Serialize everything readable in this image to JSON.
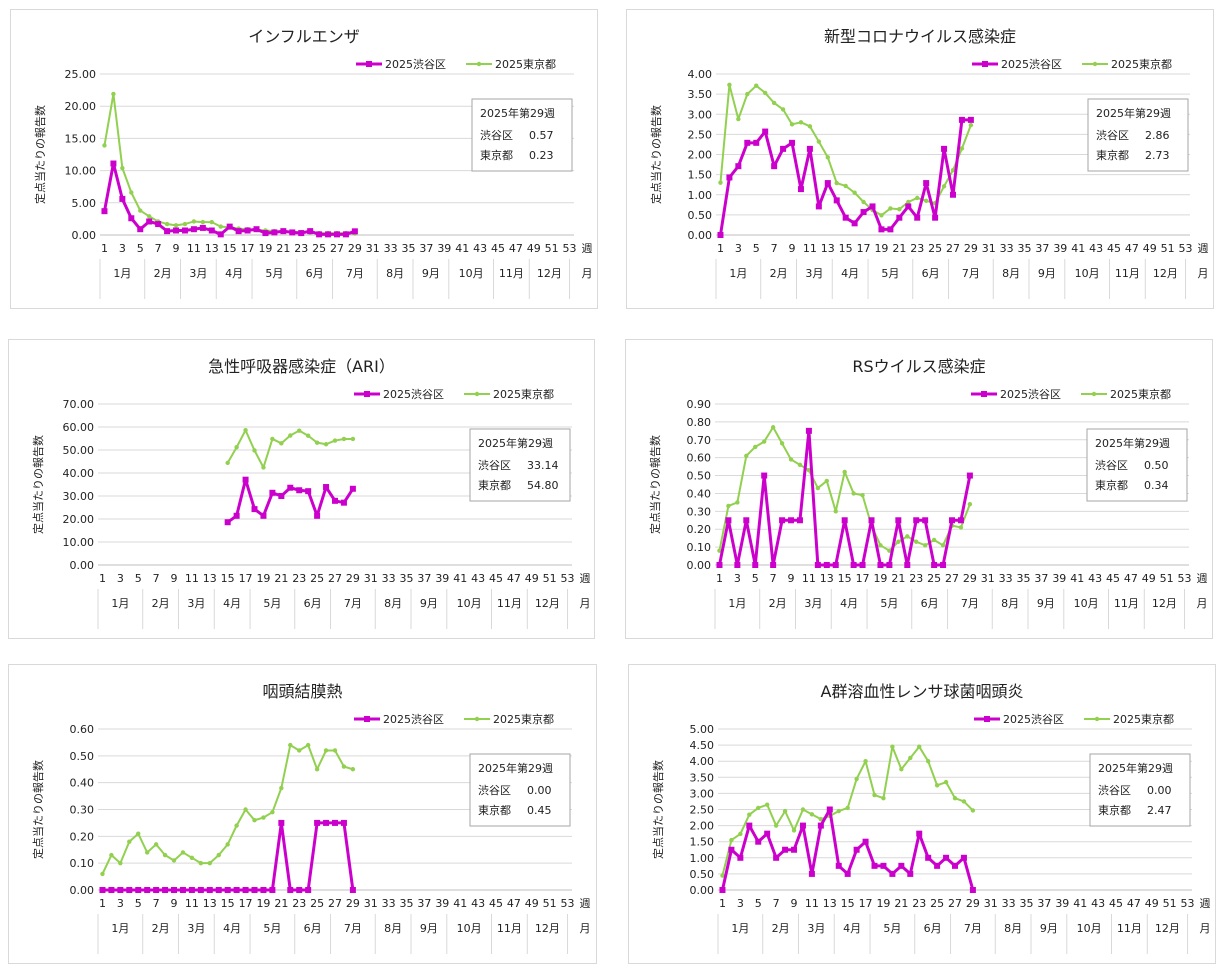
{
  "common": {
    "ylabel": "定点当たりの報告数",
    "week_unit": "週",
    "month_unit": "月",
    "week_ticks": [
      "1",
      "3",
      "5",
      "7",
      "9",
      "11",
      "13",
      "15",
      "17",
      "19",
      "21",
      "23",
      "25",
      "27",
      "29",
      "31",
      "33",
      "35",
      "37",
      "39",
      "41",
      "43",
      "45",
      "47",
      "49",
      "51",
      "53"
    ],
    "months": [
      "1月",
      "2月",
      "3月",
      "4月",
      "5月",
      "6月",
      "7月",
      "8月",
      "9月",
      "10月",
      "11月",
      "12月"
    ],
    "shibuya_color": "#cc00cc",
    "tokyo_color": "#92d050"
  },
  "chart_data": [
    {
      "type": "line",
      "title": "インフルエンザ",
      "ylabel": "定点当たりの報告数",
      "ylim": [
        0,
        25
      ],
      "yticks": [
        "0.00",
        "5.00",
        "10.00",
        "15.00",
        "20.00",
        "25.00"
      ],
      "x": [
        1,
        2,
        3,
        4,
        5,
        6,
        7,
        8,
        9,
        10,
        11,
        12,
        13,
        14,
        15,
        16,
        17,
        18,
        19,
        20,
        21,
        22,
        23,
        24,
        25,
        26,
        27,
        28,
        29
      ],
      "series": [
        {
          "name": "2025渋谷区",
          "values": [
            3.7,
            11.1,
            5.6,
            2.6,
            0.9,
            2.1,
            1.7,
            0.6,
            0.7,
            0.7,
            0.9,
            1.1,
            0.7,
            0.1,
            1.3,
            0.6,
            0.7,
            0.9,
            0.3,
            0.4,
            0.6,
            0.4,
            0.3,
            0.6,
            0.1,
            0.1,
            0.1,
            0.1,
            0.57
          ]
        },
        {
          "name": "2025東京都",
          "values": [
            13.9,
            21.9,
            10.4,
            6.6,
            3.8,
            2.9,
            2.1,
            1.7,
            1.5,
            1.7,
            2.1,
            2.0,
            2.0,
            1.3,
            1.2,
            1.0,
            0.9,
            0.8,
            0.7,
            0.6,
            0.5,
            0.5,
            0.4,
            0.4,
            0.3,
            0.3,
            0.3,
            0.3,
            0.23
          ]
        }
      ],
      "infobox": {
        "header": "2025年第29週",
        "rows": [
          {
            "label": "渋谷区",
            "value": "0.57"
          },
          {
            "label": "東京都",
            "value": "0.23"
          }
        ]
      }
    },
    {
      "type": "line",
      "title": "新型コロナウイルス感染症",
      "ylabel": "定点当たりの報告数",
      "ylim": [
        0,
        4
      ],
      "yticks": [
        "0.00",
        "0.50",
        "1.00",
        "1.50",
        "2.00",
        "2.50",
        "3.00",
        "3.50",
        "4.00"
      ],
      "x": [
        1,
        2,
        3,
        4,
        5,
        6,
        7,
        8,
        9,
        10,
        11,
        12,
        13,
        14,
        15,
        16,
        17,
        18,
        19,
        20,
        21,
        22,
        23,
        24,
        25,
        26,
        27,
        28,
        29
      ],
      "series": [
        {
          "name": "2025渋谷区",
          "values": [
            0.0,
            1.43,
            1.71,
            2.29,
            2.29,
            2.57,
            1.71,
            2.14,
            2.29,
            1.14,
            2.14,
            0.71,
            1.29,
            0.86,
            0.43,
            0.29,
            0.57,
            0.71,
            0.14,
            0.14,
            0.43,
            0.71,
            0.43,
            1.29,
            0.43,
            2.14,
            1.0,
            2.86,
            2.86
          ]
        },
        {
          "name": "2025東京都",
          "values": [
            1.3,
            3.73,
            2.88,
            3.5,
            3.71,
            3.53,
            3.28,
            3.12,
            2.75,
            2.8,
            2.7,
            2.32,
            1.93,
            1.29,
            1.22,
            1.05,
            0.82,
            0.62,
            0.49,
            0.66,
            0.64,
            0.82,
            0.92,
            0.85,
            0.79,
            1.21,
            1.61,
            2.15,
            2.73
          ]
        }
      ],
      "infobox": {
        "header": "2025年第29週",
        "rows": [
          {
            "label": "渋谷区",
            "value": "2.86"
          },
          {
            "label": "東京都",
            "value": "2.73"
          }
        ]
      }
    },
    {
      "type": "line",
      "title": "急性呼吸器感染症（ARI）",
      "ylabel": "定点当たりの報告数",
      "ylim": [
        0,
        70
      ],
      "yticks": [
        "0.00",
        "10.00",
        "20.00",
        "30.00",
        "40.00",
        "50.00",
        "60.00",
        "70.00"
      ],
      "x": [
        15,
        16,
        17,
        18,
        19,
        20,
        21,
        22,
        23,
        24,
        25,
        26,
        27,
        28,
        29
      ],
      "series": [
        {
          "name": "2025渋谷区",
          "values": [
            18.6,
            21.4,
            37.1,
            24.3,
            21.4,
            31.4,
            30.0,
            33.6,
            32.5,
            32.1,
            21.4,
            33.9,
            27.9,
            27.1,
            33.14
          ]
        },
        {
          "name": "2025東京都",
          "values": [
            44.4,
            51.2,
            58.6,
            49.8,
            42.4,
            54.8,
            52.9,
            56.3,
            58.4,
            56.2,
            53.2,
            52.5,
            54.1,
            54.8,
            54.8
          ]
        }
      ],
      "infobox": {
        "header": "2025年第29週",
        "rows": [
          {
            "label": "渋谷区",
            "value": "33.14"
          },
          {
            "label": "東京都",
            "value": "54.80"
          }
        ]
      }
    },
    {
      "type": "line",
      "title": "RSウイルス感染症",
      "ylabel": "定点当たりの報告数",
      "ylim": [
        0,
        0.9
      ],
      "yticks": [
        "0.00",
        "0.10",
        "0.20",
        "0.30",
        "0.40",
        "0.50",
        "0.60",
        "0.70",
        "0.80",
        "0.90"
      ],
      "x": [
        1,
        2,
        3,
        4,
        5,
        6,
        7,
        8,
        9,
        10,
        11,
        12,
        13,
        14,
        15,
        16,
        17,
        18,
        19,
        20,
        21,
        22,
        23,
        24,
        25,
        26,
        27,
        28,
        29
      ],
      "series": [
        {
          "name": "2025渋谷区",
          "values": [
            0.0,
            0.25,
            0.0,
            0.25,
            0.0,
            0.5,
            0.0,
            0.25,
            0.25,
            0.25,
            0.75,
            0.0,
            0.0,
            0.0,
            0.25,
            0.0,
            0.0,
            0.25,
            0.0,
            0.0,
            0.25,
            0.0,
            0.25,
            0.25,
            0.0,
            0.0,
            0.25,
            0.25,
            0.5
          ]
        },
        {
          "name": "2025東京都",
          "values": [
            0.08,
            0.33,
            0.35,
            0.61,
            0.66,
            0.69,
            0.77,
            0.68,
            0.59,
            0.56,
            0.53,
            0.43,
            0.47,
            0.3,
            0.52,
            0.4,
            0.39,
            0.22,
            0.11,
            0.08,
            0.13,
            0.16,
            0.13,
            0.11,
            0.14,
            0.11,
            0.22,
            0.21,
            0.34
          ]
        }
      ],
      "infobox": {
        "header": "2025年第29週",
        "rows": [
          {
            "label": "渋谷区",
            "value": "0.50"
          },
          {
            "label": "東京都",
            "value": "0.34"
          }
        ]
      }
    },
    {
      "type": "line",
      "title": "咽頭結膜熱",
      "ylabel": "定点当たりの報告数",
      "ylim": [
        0,
        0.6
      ],
      "yticks": [
        "0.00",
        "0.10",
        "0.20",
        "0.30",
        "0.40",
        "0.50",
        "0.60"
      ],
      "x": [
        1,
        2,
        3,
        4,
        5,
        6,
        7,
        8,
        9,
        10,
        11,
        12,
        13,
        14,
        15,
        16,
        17,
        18,
        19,
        20,
        21,
        22,
        23,
        24,
        25,
        26,
        27,
        28,
        29
      ],
      "series": [
        {
          "name": "2025渋谷区",
          "values": [
            0,
            0,
            0,
            0,
            0,
            0,
            0,
            0,
            0,
            0,
            0,
            0,
            0,
            0,
            0,
            0,
            0,
            0,
            0,
            0,
            0.25,
            0,
            0,
            0,
            0.25,
            0.25,
            0.25,
            0.25,
            0.0
          ]
        },
        {
          "name": "2025東京都",
          "values": [
            0.06,
            0.13,
            0.1,
            0.18,
            0.21,
            0.14,
            0.17,
            0.13,
            0.11,
            0.14,
            0.12,
            0.1,
            0.1,
            0.13,
            0.17,
            0.24,
            0.3,
            0.26,
            0.27,
            0.29,
            0.38,
            0.54,
            0.52,
            0.54,
            0.45,
            0.52,
            0.52,
            0.46,
            0.45
          ]
        }
      ],
      "infobox": {
        "header": "2025年第29週",
        "rows": [
          {
            "label": "渋谷区",
            "value": "0.00"
          },
          {
            "label": "東京都",
            "value": "0.45"
          }
        ]
      }
    },
    {
      "type": "line",
      "title": "A群溶血性レンサ球菌咽頭炎",
      "ylabel": "定点当たりの報告数",
      "ylim": [
        0,
        5
      ],
      "yticks": [
        "0.00",
        "0.50",
        "1.00",
        "1.50",
        "2.00",
        "2.50",
        "3.00",
        "3.50",
        "4.00",
        "4.50",
        "5.00"
      ],
      "x": [
        1,
        2,
        3,
        4,
        5,
        6,
        7,
        8,
        9,
        10,
        11,
        12,
        13,
        14,
        15,
        16,
        17,
        18,
        19,
        20,
        21,
        22,
        23,
        24,
        25,
        26,
        27,
        28,
        29
      ],
      "series": [
        {
          "name": "2025渋谷区",
          "values": [
            0.0,
            1.25,
            1.0,
            2.0,
            1.5,
            1.75,
            1.0,
            1.25,
            1.25,
            2.0,
            0.5,
            2.0,
            2.5,
            0.75,
            0.5,
            1.25,
            1.5,
            0.75,
            0.75,
            0.5,
            0.75,
            0.5,
            1.75,
            1.0,
            0.75,
            1.0,
            0.75,
            1.0,
            0.0
          ]
        },
        {
          "name": "2025東京都",
          "values": [
            0.45,
            1.55,
            1.74,
            2.34,
            2.55,
            2.65,
            2.0,
            2.45,
            1.85,
            2.5,
            2.35,
            2.2,
            2.3,
            2.45,
            2.55,
            3.45,
            4.0,
            2.95,
            2.85,
            4.45,
            3.75,
            4.1,
            4.45,
            4.0,
            3.25,
            3.35,
            2.85,
            2.75,
            2.47
          ]
        }
      ],
      "infobox": {
        "header": "2025年第29週",
        "rows": [
          {
            "label": "渋谷区",
            "value": "0.00"
          },
          {
            "label": "東京都",
            "value": "2.47"
          }
        ]
      }
    }
  ]
}
